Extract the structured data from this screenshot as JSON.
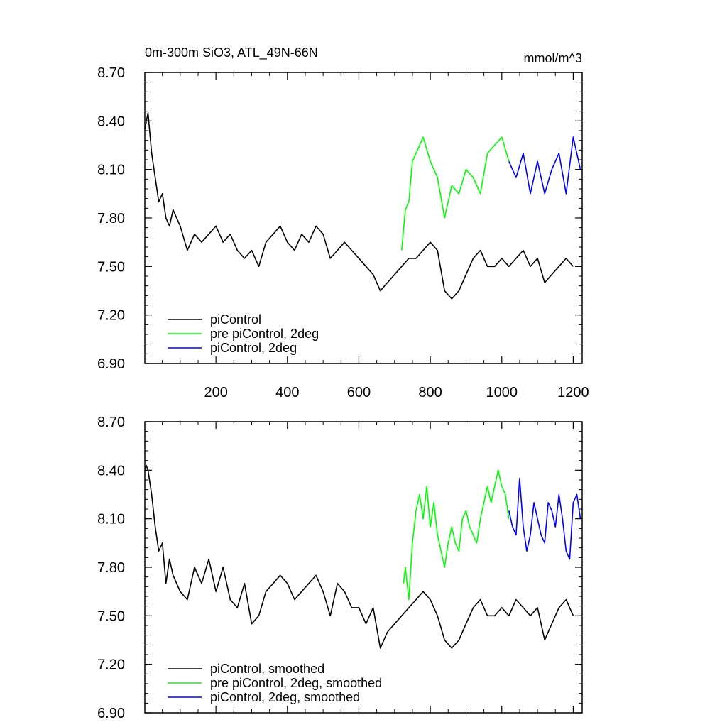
{
  "chart_data": [
    {
      "type": "line",
      "title": "0m-300m SiO3, ATL_49N-66N",
      "units": "mmol/m^3",
      "xlim": [
        1,
        1225
      ],
      "ylim": [
        6.9,
        8.7
      ],
      "xticks": [
        200,
        400,
        600,
        800,
        1000,
        1200
      ],
      "yticks": [
        6.9,
        7.2,
        7.5,
        7.8,
        8.1,
        8.4,
        8.7
      ],
      "ytick_labels": [
        "6.90",
        "7.20",
        "7.50",
        "7.80",
        "8.10",
        "8.40",
        "8.70"
      ],
      "legend": "bottom-left",
      "series": [
        {
          "name": "piControl",
          "color": "#000000",
          "x": [
            1,
            10,
            20,
            30,
            40,
            50,
            60,
            70,
            80,
            90,
            100,
            120,
            140,
            160,
            180,
            200,
            220,
            240,
            260,
            280,
            300,
            320,
            340,
            360,
            380,
            400,
            420,
            440,
            460,
            480,
            500,
            520,
            540,
            560,
            580,
            600,
            620,
            640,
            660,
            680,
            700,
            720,
            740,
            760,
            780,
            800,
            820,
            840,
            860,
            880,
            900,
            920,
            940,
            960,
            980,
            1000,
            1020,
            1040,
            1060,
            1080,
            1100,
            1120,
            1140,
            1160,
            1180,
            1200
          ],
          "y": [
            8.35,
            8.45,
            8.2,
            8.05,
            7.9,
            7.95,
            7.8,
            7.75,
            7.85,
            7.8,
            7.75,
            7.6,
            7.7,
            7.65,
            7.7,
            7.75,
            7.65,
            7.7,
            7.6,
            7.55,
            7.6,
            7.5,
            7.65,
            7.7,
            7.75,
            7.65,
            7.6,
            7.7,
            7.65,
            7.75,
            7.7,
            7.55,
            7.6,
            7.65,
            7.6,
            7.55,
            7.5,
            7.45,
            7.35,
            7.4,
            7.45,
            7.5,
            7.55,
            7.55,
            7.6,
            7.65,
            7.6,
            7.35,
            7.3,
            7.35,
            7.45,
            7.55,
            7.6,
            7.5,
            7.5,
            7.55,
            7.5,
            7.55,
            7.6,
            7.5,
            7.55,
            7.4,
            7.45,
            7.5,
            7.55,
            7.5
          ]
        },
        {
          "name": "pre piControl, 2deg",
          "color": "#00ff00",
          "x": [
            720,
            730,
            740,
            750,
            760,
            780,
            800,
            820,
            840,
            860,
            880,
            900,
            920,
            940,
            960,
            980,
            1000,
            1020
          ],
          "y": [
            7.6,
            7.85,
            7.9,
            8.15,
            8.2,
            8.3,
            8.15,
            8.05,
            7.8,
            8.0,
            7.95,
            8.1,
            8.05,
            7.95,
            8.2,
            8.25,
            8.3,
            8.15
          ]
        },
        {
          "name": "piControl, 2deg",
          "color": "#0000ff",
          "x": [
            1020,
            1040,
            1060,
            1080,
            1100,
            1120,
            1140,
            1160,
            1180,
            1200,
            1220
          ],
          "y": [
            8.15,
            8.05,
            8.2,
            7.95,
            8.15,
            7.95,
            8.1,
            8.2,
            7.95,
            8.3,
            8.1
          ]
        }
      ]
    },
    {
      "type": "line",
      "xlim": [
        1,
        1225
      ],
      "ylim": [
        6.9,
        8.7
      ],
      "xticks": [
        200,
        400,
        600,
        800,
        1000,
        1200
      ],
      "yticks": [
        6.9,
        7.2,
        7.5,
        7.8,
        8.1,
        8.4,
        8.7
      ],
      "ytick_labels": [
        "6.90",
        "7.20",
        "7.50",
        "7.80",
        "8.10",
        "8.40",
        "8.70"
      ],
      "legend": "bottom-left",
      "series": [
        {
          "name": "piControl, smoothed",
          "color": "#000000",
          "x": [
            1,
            5,
            10,
            20,
            30,
            40,
            50,
            60,
            70,
            80,
            90,
            100,
            120,
            140,
            160,
            180,
            200,
            220,
            240,
            260,
            280,
            300,
            320,
            340,
            360,
            380,
            400,
            420,
            440,
            460,
            480,
            500,
            520,
            540,
            560,
            580,
            600,
            620,
            640,
            660,
            680,
            700,
            720,
            740,
            760,
            780,
            800,
            820,
            840,
            860,
            880,
            900,
            920,
            940,
            960,
            980,
            1000,
            1020,
            1040,
            1060,
            1080,
            1100,
            1120,
            1140,
            1160,
            1180,
            1200
          ],
          "y": [
            8.4,
            8.43,
            8.4,
            8.25,
            8.05,
            7.9,
            7.95,
            7.7,
            7.85,
            7.75,
            7.7,
            7.65,
            7.6,
            7.8,
            7.7,
            7.85,
            7.65,
            7.8,
            7.6,
            7.55,
            7.7,
            7.45,
            7.5,
            7.65,
            7.7,
            7.75,
            7.7,
            7.6,
            7.65,
            7.7,
            7.75,
            7.65,
            7.5,
            7.7,
            7.65,
            7.55,
            7.55,
            7.45,
            7.55,
            7.3,
            7.4,
            7.45,
            7.5,
            7.55,
            7.6,
            7.65,
            7.6,
            7.5,
            7.35,
            7.3,
            7.35,
            7.45,
            7.55,
            7.6,
            7.5,
            7.5,
            7.55,
            7.5,
            7.6,
            7.55,
            7.5,
            7.55,
            7.35,
            7.45,
            7.55,
            7.6,
            7.5
          ]
        },
        {
          "name": "pre piControl, 2deg, smoothed",
          "color": "#00ff00",
          "x": [
            725,
            730,
            740,
            750,
            760,
            770,
            780,
            790,
            800,
            810,
            820,
            830,
            840,
            850,
            860,
            870,
            880,
            890,
            900,
            910,
            920,
            930,
            940,
            950,
            960,
            970,
            980,
            990,
            1000,
            1010,
            1020
          ],
          "y": [
            7.7,
            7.8,
            7.6,
            7.95,
            8.15,
            8.25,
            8.1,
            8.3,
            8.05,
            8.2,
            8.0,
            7.9,
            7.8,
            7.95,
            8.05,
            7.95,
            7.9,
            8.1,
            8.15,
            8.05,
            8.0,
            7.95,
            8.1,
            8.2,
            8.3,
            8.2,
            8.3,
            8.4,
            8.3,
            8.25,
            8.1
          ]
        },
        {
          "name": "piControl, 2deg, smoothed",
          "color": "#0000ff",
          "x": [
            1020,
            1030,
            1040,
            1050,
            1060,
            1070,
            1080,
            1090,
            1100,
            1110,
            1120,
            1130,
            1140,
            1150,
            1160,
            1170,
            1180,
            1190,
            1200,
            1210,
            1220
          ],
          "y": [
            8.15,
            8.05,
            8.0,
            8.35,
            8.05,
            7.9,
            8.0,
            8.2,
            8.1,
            8.0,
            7.95,
            8.2,
            8.15,
            8.05,
            8.25,
            8.1,
            7.9,
            7.85,
            8.2,
            8.25,
            8.1
          ]
        }
      ]
    }
  ]
}
